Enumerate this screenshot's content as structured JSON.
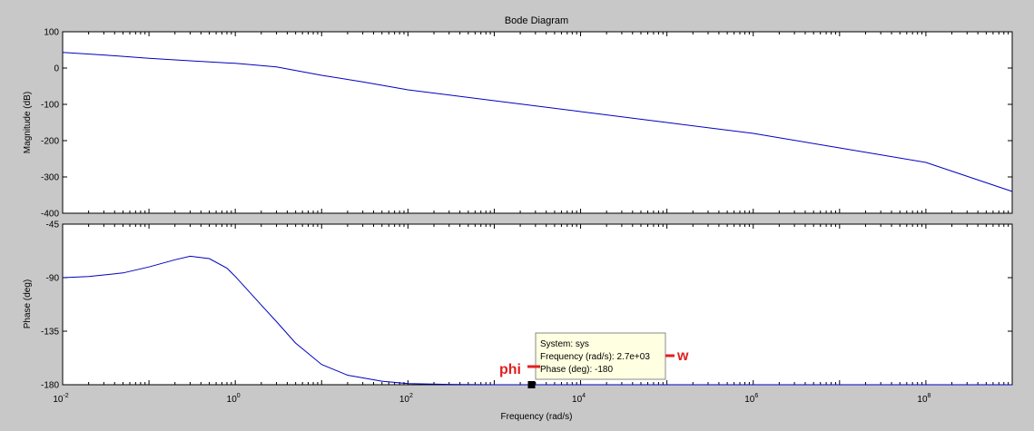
{
  "colors": {
    "figure_bg": "#c8c8c8",
    "axes_bg": "#ffffff",
    "line": "#0000c0",
    "datatip_bg": "#ffffe1",
    "annotation": "#e02020"
  },
  "chart_data": {
    "type": "line",
    "title": "Bode Diagram",
    "xlabel": "Frequency  (rad/s)",
    "x_scale": "log",
    "xlim": [
      0.01,
      1000000000
    ],
    "x_ticks": [
      {
        "value": 0.01,
        "base": "10",
        "exp": "-2"
      },
      {
        "value": 1,
        "base": "10",
        "exp": "0"
      },
      {
        "value": 100,
        "base": "10",
        "exp": "2"
      },
      {
        "value": 10000,
        "base": "10",
        "exp": "4"
      },
      {
        "value": 1000000,
        "base": "10",
        "exp": "6"
      },
      {
        "value": 100000000,
        "base": "10",
        "exp": "8"
      }
    ],
    "grid": false,
    "panels": [
      {
        "ylabel": "Magnitude (dB)",
        "ylim": [
          -400,
          100
        ],
        "y_ticks": [
          "100",
          "0",
          "-100",
          "-200",
          "-300",
          "-400"
        ],
        "series": [
          {
            "x": [
              0.01,
              0.03,
              0.1,
              0.3,
              1,
              3,
              10,
              30,
              100,
              1000,
              10000,
              100000,
              1000000,
              10000000,
              100000000,
              1000000000
            ],
            "y": [
              43,
              36,
              27,
              20,
              13,
              3,
              -20,
              -38,
              -60,
              -90,
              -120,
              -150,
              -180,
              -220,
              -260,
              -340
            ]
          }
        ]
      },
      {
        "ylabel": "Phase (deg)",
        "ylim": [
          -180,
          -45
        ],
        "y_ticks": [
          "-45",
          "-90",
          "-135",
          "-180"
        ],
        "series": [
          {
            "x": [
              0.01,
              0.02,
              0.05,
              0.1,
              0.2,
              0.3,
              0.5,
              0.8,
              1,
              2,
              3,
              5,
              10,
              20,
              50,
              100,
              300,
              1000,
              10000,
              1000000000
            ],
            "y": [
              -90,
              -89,
              -86,
              -81,
              -75,
              -72,
              -74,
              -82,
              -89,
              -113,
              -127,
              -145,
              -163,
              -172,
              -177,
              -179,
              -179.7,
              -180,
              -180,
              -180
            ]
          }
        ]
      }
    ],
    "datatip": {
      "system": "System: sys",
      "frequency": "Frequency (rad/s): 2.7e+03",
      "phase": "Phase (deg): -180",
      "x": 2700,
      "y": -180
    },
    "annotations": {
      "w": "w",
      "phi": "phi"
    }
  }
}
